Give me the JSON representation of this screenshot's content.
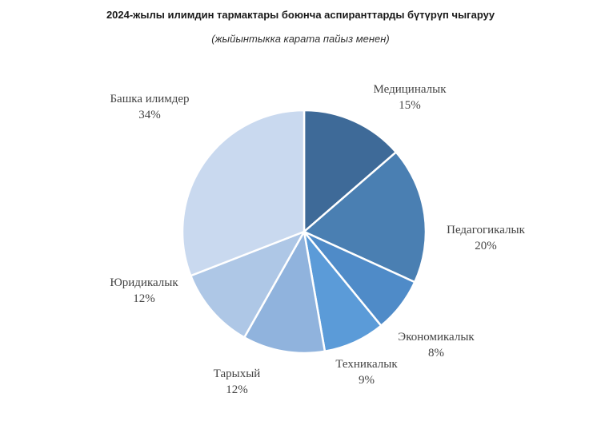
{
  "chart_data": {
    "type": "pie",
    "title": "2024-жылы илимдин тармактары боюнча аспиранттарды бүтүрүп чыгаруу",
    "subtitle": "(жыйынтыкка карата пайыз менен)",
    "slices": [
      {
        "label": "Медициналык",
        "value": 15,
        "value_label": "15%",
        "color": "#3e6a98"
      },
      {
        "label": "Педагогикалык",
        "value": 20,
        "value_label": "20%",
        "color": "#4a7fb2"
      },
      {
        "label": "Экономикалык",
        "value": 8,
        "value_label": "8%",
        "color": "#4f8bc8"
      },
      {
        "label": "Техникалык",
        "value": 9,
        "value_label": "9%",
        "color": "#5b9bd8"
      },
      {
        "label": "Тарыхый",
        "value": 12,
        "value_label": "12%",
        "color": "#90b3dd"
      },
      {
        "label": "Юридикалык",
        "value": 12,
        "value_label": "12%",
        "color": "#aec7e6"
      },
      {
        "label": "Башка илимдер",
        "value": 34,
        "value_label": "34%",
        "color": "#c9d9ef"
      }
    ]
  }
}
